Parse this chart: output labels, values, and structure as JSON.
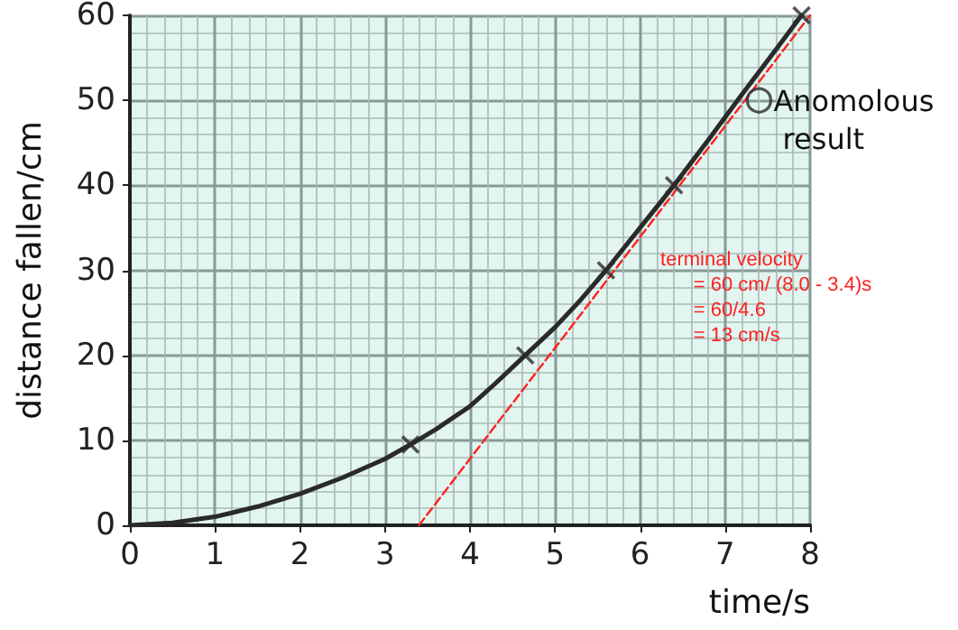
{
  "chart_data": {
    "type": "scatter",
    "xlabel": "time/s",
    "ylabel": "distance fallen/cm",
    "xlim": [
      0,
      8
    ],
    "ylim": [
      0,
      60
    ],
    "xticks": [
      0,
      1,
      2,
      3,
      4,
      5,
      6,
      7,
      8
    ],
    "yticks": [
      0,
      10,
      20,
      30,
      40,
      50,
      60
    ],
    "grid": true,
    "series": [
      {
        "type": "line",
        "color": "#2a2a2a",
        "marker": "none",
        "line_style": "solid",
        "x": [
          0,
          0.5,
          1,
          1.5,
          2,
          2.5,
          3,
          3.3,
          3.6,
          4,
          4.3,
          4.65,
          5,
          5.3,
          5.6,
          6,
          6.4,
          6.8,
          7.2,
          7.6,
          7.9
        ],
        "values": [
          0,
          0.3,
          1,
          2.2,
          3.7,
          5.6,
          7.8,
          9.5,
          11.3,
          14,
          16.7,
          20,
          23.3,
          26.5,
          30,
          35,
          40,
          45.3,
          50.7,
          56,
          60
        ]
      },
      {
        "type": "line",
        "color": "#ff2020",
        "marker": "none",
        "line_style": "dashed",
        "x": [
          3.4,
          8.0
        ],
        "values": [
          0,
          60
        ]
      },
      {
        "type": "scatter",
        "color": "#2a2a2a",
        "marker": "cross",
        "x": [
          3.3,
          4.65,
          5.6,
          6.4,
          7.9
        ],
        "values": [
          9.5,
          20,
          30,
          40,
          60
        ]
      },
      {
        "type": "scatter",
        "color": "#2a2a2a",
        "marker": "circle",
        "x": [
          7.4
        ],
        "values": [
          50
        ]
      }
    ],
    "annotations": [
      {
        "text": "Anomolous result",
        "x": 7.4,
        "y": 50
      },
      "terminal velocity\n= 60 cm/ (8.0 - 3.4)s\n= 60/4.6\n= 13 cm/s"
    ]
  }
}
